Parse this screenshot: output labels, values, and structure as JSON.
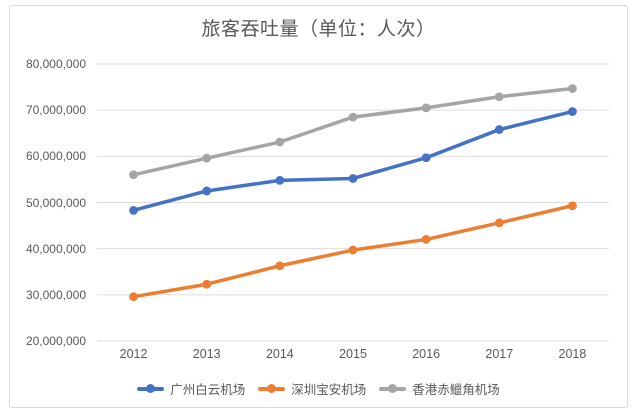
{
  "colors": {
    "background": "#FFFFFF",
    "border": "#D9D9D9",
    "gridline": "#DCDCDC",
    "text": "#595959",
    "series_blue": "#4472C4",
    "series_orange": "#ED7D31",
    "series_gray": "#A5A5A5"
  },
  "chart_data": {
    "type": "line",
    "title": "旅客吞吐量（单位：人次）",
    "categories": [
      "2012",
      "2013",
      "2014",
      "2015",
      "2016",
      "2017",
      "2018"
    ],
    "series": [
      {
        "name": "广州白云机场",
        "color": "#4472C4",
        "values": [
          48300000,
          52500000,
          54800000,
          55200000,
          59700000,
          65800000,
          69700000
        ]
      },
      {
        "name": "深圳宝安机场",
        "color": "#ED7D31",
        "values": [
          29600000,
          32300000,
          36300000,
          39700000,
          42000000,
          45600000,
          49300000
        ]
      },
      {
        "name": "香港赤鱲角机场",
        "color": "#A5A5A5",
        "values": [
          56000000,
          59600000,
          63100000,
          68500000,
          70500000,
          72900000,
          74700000
        ]
      }
    ],
    "xlabel": "",
    "ylabel": "",
    "ylim": [
      20000000,
      80000000
    ],
    "y_tick_step": 10000000,
    "y_tick_labels": [
      "80,000,000",
      "70,000,000",
      "60,000,000",
      "50,000,000",
      "40,000,000",
      "30,000,000",
      "20,000,000"
    ],
    "grid": "horizontal",
    "legend_position": "bottom",
    "marker": "circle"
  }
}
